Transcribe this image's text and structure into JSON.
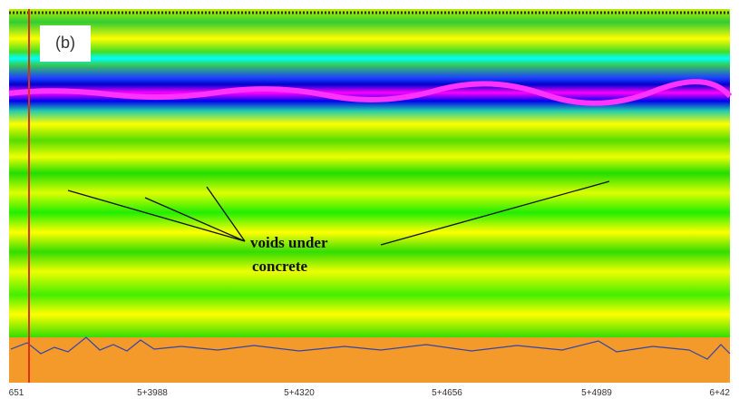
{
  "panel_label": "(b)",
  "annotation": {
    "line1": "voids under",
    "line2": "concrete"
  },
  "axis_labels": [
    "651",
    "5+3988",
    "5+4320",
    "5+4656",
    "5+4989",
    "6+42"
  ]
}
